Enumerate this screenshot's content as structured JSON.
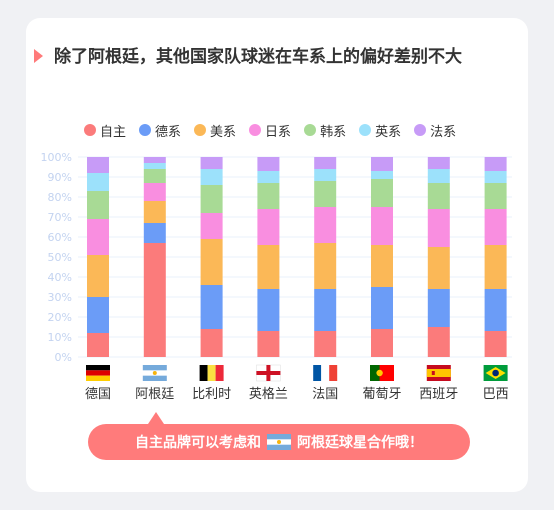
{
  "title": "除了阿根廷，其他国家队球迷在车系上的偏好差别不大",
  "legend": [
    {
      "label": "自主",
      "color": "#fb7b7b"
    },
    {
      "label": "德系",
      "color": "#6b9cf7"
    },
    {
      "label": "美系",
      "color": "#fbb857"
    },
    {
      "label": "日系",
      "color": "#f98ee0"
    },
    {
      "label": "韩系",
      "color": "#a8da95"
    },
    {
      "label": "英系",
      "color": "#9ce1fb"
    },
    {
      "label": "法系",
      "color": "#c79bf7"
    }
  ],
  "callout": {
    "text_before": "自主品牌可以考虑和",
    "text_after": "阿根廷球星合作哦！"
  },
  "chart_data": {
    "type": "bar",
    "stacked": true,
    "categories": [
      "德国",
      "阿根廷",
      "比利时",
      "英格兰",
      "法国",
      "葡萄牙",
      "西班牙",
      "巴西"
    ],
    "yticks": [
      "0%",
      "10%",
      "20%",
      "30%",
      "40%",
      "50%",
      "60%",
      "70%",
      "80%",
      "90%",
      "100%"
    ],
    "ylim": [
      0,
      100
    ],
    "grid": true,
    "legend_position": "top",
    "series": [
      {
        "name": "自主",
        "color": "#fb7b7b",
        "values": [
          12,
          57,
          14,
          13,
          13,
          14,
          15,
          13
        ]
      },
      {
        "name": "德系",
        "color": "#6b9cf7",
        "values": [
          18,
          10,
          22,
          21,
          21,
          21,
          19,
          21
        ]
      },
      {
        "name": "美系",
        "color": "#fbb857",
        "values": [
          21,
          11,
          23,
          22,
          23,
          21,
          21,
          22
        ]
      },
      {
        "name": "日系",
        "color": "#f98ee0",
        "values": [
          18,
          9,
          13,
          18,
          18,
          19,
          19,
          18
        ]
      },
      {
        "name": "韩系",
        "color": "#a8da95",
        "values": [
          14,
          7,
          14,
          13,
          13,
          14,
          13,
          13
        ]
      },
      {
        "name": "英系",
        "color": "#9ce1fb",
        "values": [
          9,
          3,
          8,
          6,
          6,
          4,
          7,
          6
        ]
      },
      {
        "name": "法系",
        "color": "#c79bf7",
        "values": [
          8,
          3,
          6,
          7,
          6,
          7,
          6,
          7
        ]
      }
    ],
    "flags": [
      "germany-flag",
      "argentina-flag",
      "belgium-flag",
      "england-flag",
      "france-flag",
      "portugal-flag",
      "spain-flag",
      "brazil-flag"
    ]
  }
}
